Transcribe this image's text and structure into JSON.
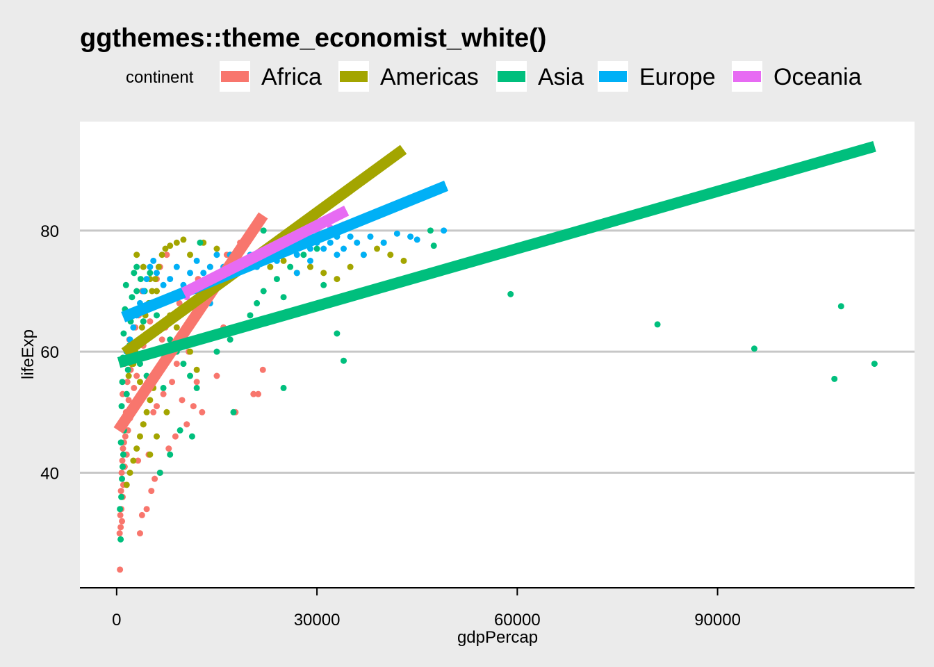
{
  "chart_data": {
    "type": "scatter",
    "title": "ggthemes::theme_economist_white()",
    "xlabel": "gdpPercap",
    "ylabel": "lifeExp",
    "xlim": [
      -5500,
      119500
    ],
    "ylim": [
      21,
      98
    ],
    "x_ticks": [
      0,
      30000,
      60000,
      90000
    ],
    "y_ticks": [
      40,
      60,
      80
    ],
    "grid": "horizontal",
    "legend": {
      "title": "continent",
      "position": "top",
      "entries": [
        {
          "label": "Africa",
          "color": "#F8766D"
        },
        {
          "label": "Americas",
          "color": "#A3A500"
        },
        {
          "label": "Asia",
          "color": "#00BF7D"
        },
        {
          "label": "Europe",
          "color": "#00B0F6"
        },
        {
          "label": "Oceania",
          "color": "#E76BF3"
        }
      ]
    },
    "series": [
      {
        "name": "Africa",
        "color": "#F8766D",
        "trend": {
          "x1": 241,
          "y1": 47.0,
          "x2": 21951,
          "y2": 82.5
        },
        "points": [
          [
            500,
            24
          ],
          [
            450,
            30
          ],
          [
            600,
            31
          ],
          [
            800,
            32
          ],
          [
            550,
            33
          ],
          [
            700,
            34
          ],
          [
            900,
            36
          ],
          [
            650,
            37
          ],
          [
            1000,
            38
          ],
          [
            750,
            40
          ],
          [
            1200,
            41
          ],
          [
            850,
            42
          ],
          [
            1500,
            43
          ],
          [
            950,
            44
          ],
          [
            1100,
            45
          ],
          [
            1300,
            46
          ],
          [
            1700,
            47
          ],
          [
            600,
            48
          ],
          [
            2000,
            49
          ],
          [
            1400,
            50
          ],
          [
            2300,
            51
          ],
          [
            1800,
            52
          ],
          [
            900,
            53
          ],
          [
            2600,
            54
          ],
          [
            1600,
            55
          ],
          [
            3000,
            56
          ],
          [
            2100,
            57
          ],
          [
            1200,
            58
          ],
          [
            3500,
            59
          ],
          [
            2500,
            60
          ],
          [
            4000,
            61
          ],
          [
            1900,
            62
          ],
          [
            4500,
            63
          ],
          [
            2800,
            64
          ],
          [
            5000,
            65
          ],
          [
            3300,
            66
          ],
          [
            5500,
            68
          ],
          [
            3800,
            70
          ],
          [
            6000,
            72
          ],
          [
            6500,
            74
          ],
          [
            7500,
            76
          ],
          [
            3500,
            30
          ],
          [
            3800,
            33
          ],
          [
            4500,
            34
          ],
          [
            5200,
            37
          ],
          [
            5700,
            39
          ],
          [
            6500,
            40
          ],
          [
            3200,
            42
          ],
          [
            4800,
            43
          ],
          [
            7800,
            44
          ],
          [
            8800,
            46
          ],
          [
            4000,
            48
          ],
          [
            5500,
            50
          ],
          [
            6000,
            51
          ],
          [
            10500,
            48
          ],
          [
            11500,
            51
          ],
          [
            9800,
            52
          ],
          [
            7000,
            53
          ],
          [
            12800,
            50
          ],
          [
            17800,
            50
          ],
          [
            20500,
            53
          ],
          [
            21200,
            53
          ],
          [
            21900,
            57
          ],
          [
            15000,
            56
          ],
          [
            8300,
            55
          ],
          [
            12000,
            55
          ],
          [
            9000,
            58
          ],
          [
            10800,
            60
          ],
          [
            13500,
            62
          ],
          [
            16000,
            64
          ],
          [
            6800,
            62
          ],
          [
            7300,
            64
          ],
          [
            8600,
            66
          ],
          [
            9400,
            68
          ],
          [
            10200,
            70
          ],
          [
            12200,
            72
          ],
          [
            14000,
            74
          ],
          [
            16500,
            76
          ],
          [
            18500,
            78
          ],
          [
            20000,
            80
          ]
        ]
      },
      {
        "name": "Americas",
        "color": "#A3A500",
        "trend": {
          "x1": 1202,
          "y1": 59.8,
          "x2": 42952,
          "y2": 93.4
        },
        "points": [
          [
            1500,
            38
          ],
          [
            2000,
            40
          ],
          [
            2500,
            42
          ],
          [
            3000,
            44
          ],
          [
            3500,
            46
          ],
          [
            4000,
            48
          ],
          [
            4500,
            50
          ],
          [
            5000,
            52
          ],
          [
            5500,
            54
          ],
          [
            1800,
            56
          ],
          [
            2200,
            58
          ],
          [
            2800,
            60
          ],
          [
            3300,
            62
          ],
          [
            3800,
            64
          ],
          [
            4300,
            66
          ],
          [
            4800,
            68
          ],
          [
            5300,
            70
          ],
          [
            5800,
            72
          ],
          [
            6300,
            74
          ],
          [
            6800,
            76
          ],
          [
            7300,
            77
          ],
          [
            8000,
            77.5
          ],
          [
            9000,
            78
          ],
          [
            10000,
            78.5
          ],
          [
            11000,
            76
          ],
          [
            13000,
            78
          ],
          [
            15000,
            77
          ],
          [
            17000,
            76
          ],
          [
            19000,
            78
          ],
          [
            21000,
            75
          ],
          [
            23000,
            74
          ],
          [
            25000,
            75
          ],
          [
            27000,
            73
          ],
          [
            29000,
            74
          ],
          [
            31000,
            73
          ],
          [
            33000,
            72
          ],
          [
            35000,
            74
          ],
          [
            37000,
            76
          ],
          [
            39000,
            77
          ],
          [
            41000,
            76
          ],
          [
            43000,
            75
          ],
          [
            3000,
            76
          ],
          [
            4000,
            74
          ],
          [
            5000,
            72
          ],
          [
            6000,
            70
          ],
          [
            7000,
            68
          ],
          [
            8000,
            66
          ],
          [
            9000,
            64
          ],
          [
            10000,
            62
          ],
          [
            11000,
            60
          ],
          [
            12000,
            57
          ],
          [
            7500,
            50
          ],
          [
            6000,
            46
          ],
          [
            5000,
            43
          ],
          [
            2500,
            58
          ],
          [
            3500,
            55
          ]
        ]
      },
      {
        "name": "Asia",
        "color": "#00BF7D",
        "trend": {
          "x1": 331,
          "y1": 58.2,
          "x2": 113523,
          "y2": 93.9
        },
        "points": [
          [
            600,
            29
          ],
          [
            500,
            34
          ],
          [
            700,
            36
          ],
          [
            800,
            39
          ],
          [
            900,
            41
          ],
          [
            1000,
            43
          ],
          [
            650,
            45
          ],
          [
            1100,
            47
          ],
          [
            1300,
            49
          ],
          [
            750,
            51
          ],
          [
            1500,
            53
          ],
          [
            850,
            55
          ],
          [
            1700,
            57
          ],
          [
            950,
            59
          ],
          [
            1900,
            61
          ],
          [
            1050,
            63
          ],
          [
            2100,
            65
          ],
          [
            1250,
            67
          ],
          [
            2300,
            69
          ],
          [
            1400,
            71
          ],
          [
            2600,
            73
          ],
          [
            3000,
            74
          ],
          [
            3600,
            72
          ],
          [
            4200,
            70
          ],
          [
            5000,
            68
          ],
          [
            6000,
            66
          ],
          [
            7000,
            64
          ],
          [
            8000,
            62
          ],
          [
            9000,
            60
          ],
          [
            10000,
            58
          ],
          [
            11000,
            56
          ],
          [
            12000,
            54
          ],
          [
            6500,
            40
          ],
          [
            8000,
            43
          ],
          [
            9500,
            47
          ],
          [
            11300,
            46
          ],
          [
            15000,
            60
          ],
          [
            17000,
            62
          ],
          [
            19000,
            64
          ],
          [
            20000,
            66
          ],
          [
            21000,
            68
          ],
          [
            22000,
            70
          ],
          [
            24000,
            72
          ],
          [
            26000,
            74
          ],
          [
            28000,
            76
          ],
          [
            30000,
            77
          ],
          [
            12500,
            78
          ],
          [
            22000,
            80
          ],
          [
            26500,
            79
          ],
          [
            31000,
            71
          ],
          [
            33000,
            63
          ],
          [
            34000,
            58.5
          ],
          [
            25000,
            54
          ],
          [
            25000,
            69
          ],
          [
            40000,
            78
          ],
          [
            47000,
            80
          ],
          [
            47500,
            77.5
          ],
          [
            59000,
            69.5
          ],
          [
            81000,
            64.5
          ],
          [
            95500,
            60.5
          ],
          [
            108500,
            67.5
          ],
          [
            107500,
            55.5
          ],
          [
            113500,
            58
          ],
          [
            4000,
            65
          ],
          [
            5000,
            73
          ],
          [
            3000,
            70
          ],
          [
            2000,
            66
          ],
          [
            1500,
            60
          ],
          [
            3500,
            58
          ],
          [
            4500,
            56
          ],
          [
            7000,
            54
          ],
          [
            17500,
            50
          ]
        ]
      },
      {
        "name": "Europe",
        "color": "#00B0F6",
        "trend": {
          "x1": 974,
          "y1": 65.7,
          "x2": 49357,
          "y2": 87.4
        },
        "points": [
          [
            1500,
            60
          ],
          [
            2000,
            62
          ],
          [
            2500,
            64
          ],
          [
            3000,
            66
          ],
          [
            3500,
            68
          ],
          [
            4000,
            70
          ],
          [
            4500,
            72
          ],
          [
            5000,
            74
          ],
          [
            5500,
            75
          ],
          [
            6000,
            73
          ],
          [
            7000,
            71
          ],
          [
            8000,
            72
          ],
          [
            9000,
            74
          ],
          [
            10000,
            71
          ],
          [
            11000,
            73
          ],
          [
            12000,
            75
          ],
          [
            13000,
            73
          ],
          [
            14000,
            74
          ],
          [
            15000,
            76
          ],
          [
            16000,
            74
          ],
          [
            17000,
            76
          ],
          [
            18000,
            75
          ],
          [
            19000,
            77
          ],
          [
            20000,
            76
          ],
          [
            21000,
            74
          ],
          [
            22000,
            77
          ],
          [
            23000,
            76
          ],
          [
            24000,
            75
          ],
          [
            25000,
            78
          ],
          [
            26000,
            77
          ],
          [
            27000,
            76
          ],
          [
            28000,
            79
          ],
          [
            29000,
            77
          ],
          [
            30000,
            78
          ],
          [
            31000,
            77
          ],
          [
            32000,
            78
          ],
          [
            33000,
            79
          ],
          [
            34000,
            77
          ],
          [
            35000,
            79
          ],
          [
            36000,
            78
          ],
          [
            38000,
            79
          ],
          [
            40000,
            78
          ],
          [
            42000,
            79.5
          ],
          [
            44000,
            79
          ],
          [
            45000,
            78.5
          ],
          [
            49000,
            80
          ],
          [
            12000,
            70
          ],
          [
            14000,
            68
          ],
          [
            27000,
            73
          ],
          [
            29000,
            75
          ],
          [
            33000,
            76
          ],
          [
            37000,
            76
          ]
        ]
      },
      {
        "name": "Oceania",
        "color": "#E76BF3",
        "trend": {
          "x1": 10040,
          "y1": 69.7,
          "x2": 34435,
          "y2": 83.3
        },
        "points": [
          [
            10500,
            69
          ],
          [
            11000,
            70
          ],
          [
            12500,
            71
          ],
          [
            14000,
            71
          ],
          [
            16000,
            72
          ],
          [
            18000,
            73.5
          ],
          [
            20000,
            74
          ],
          [
            22000,
            75
          ],
          [
            24000,
            76
          ],
          [
            26000,
            78
          ],
          [
            28000,
            79
          ],
          [
            30000,
            80
          ],
          [
            32000,
            80.5
          ],
          [
            34000,
            81
          ],
          [
            13000,
            70.5
          ],
          [
            15000,
            72
          ],
          [
            17000,
            73
          ],
          [
            19000,
            74.5
          ],
          [
            21000,
            75.5
          ],
          [
            23000,
            77
          ]
        ]
      }
    ]
  }
}
